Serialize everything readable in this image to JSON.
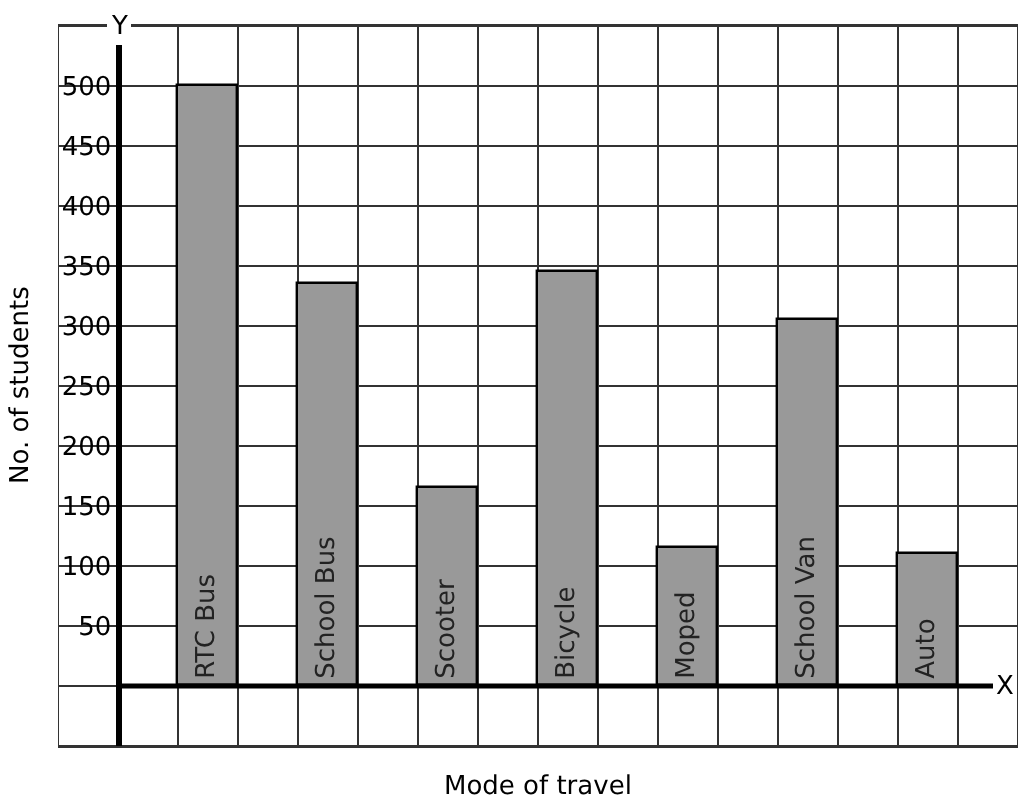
{
  "chart_data": {
    "type": "bar",
    "categories": [
      "RTC Bus",
      "School Bus",
      "Scooter",
      "Bicycle",
      "Moped",
      "School Van",
      "Auto"
    ],
    "values": [
      500,
      335,
      165,
      345,
      115,
      305,
      110
    ],
    "color": "#999999",
    "xlabel": "Mode of travel",
    "ylabel": "No. of students",
    "ylim": [
      -50,
      550
    ],
    "yticks": [
      50,
      100,
      150,
      200,
      250,
      300,
      350,
      400,
      450,
      500
    ],
    "grid": true,
    "tick_labels": "y",
    "annotations": [
      "Y",
      "X"
    ]
  }
}
